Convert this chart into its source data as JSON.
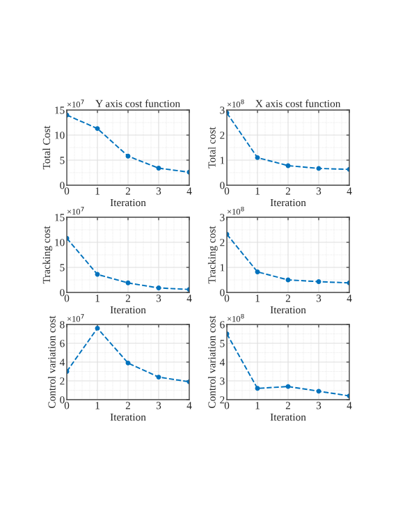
{
  "chart_data": [
    {
      "type": "line",
      "title": "Y axis cost function",
      "xlabel": "Iteration",
      "ylabel": "Total Cost",
      "annotations": [
        "×10$^{7}$"
      ],
      "x": [
        0,
        1,
        2,
        3,
        4
      ],
      "series": [
        {
          "color": "#0072bd",
          "values": [
            14,
            11.3,
            5.8,
            3.4,
            2.6
          ]
        }
      ],
      "xlim": [
        0,
        4
      ],
      "xticks": [
        0,
        1,
        2,
        3,
        4
      ],
      "ylim": [
        0,
        15
      ],
      "yticks": [
        0,
        5,
        10,
        15
      ],
      "grid": true,
      "marker": "circle",
      "line_style": "dashed"
    },
    {
      "type": "line",
      "title": "X axis cost function",
      "xlabel": "Iteration",
      "ylabel": "Total cost",
      "annotations": [
        "×10$^{8}$"
      ],
      "x": [
        0,
        1,
        2,
        3,
        4
      ],
      "series": [
        {
          "color": "#0072bd",
          "values": [
            2.88,
            1.1,
            0.78,
            0.67,
            0.63
          ]
        }
      ],
      "xlim": [
        0,
        4
      ],
      "xticks": [
        0,
        1,
        2,
        3,
        4
      ],
      "ylim": [
        0,
        3
      ],
      "yticks": [
        0,
        1,
        2,
        3
      ],
      "grid": true,
      "marker": "circle",
      "line_style": "dashed"
    },
    {
      "type": "line",
      "xlabel": "Iteration",
      "ylabel": "Tracking cost",
      "annotations": [
        "×10$^{7}$"
      ],
      "x": [
        0,
        1,
        2,
        3,
        4
      ],
      "series": [
        {
          "color": "#0072bd",
          "values": [
            10.8,
            3.6,
            1.9,
            0.9,
            0.6
          ]
        }
      ],
      "xlim": [
        0,
        4
      ],
      "xticks": [
        0,
        1,
        2,
        3,
        4
      ],
      "ylim": [
        0,
        15
      ],
      "yticks": [
        0,
        5,
        10,
        15
      ],
      "grid": true,
      "marker": "circle",
      "line_style": "dashed"
    },
    {
      "type": "line",
      "xlabel": "Iteration",
      "ylabel": "Tracking cost",
      "annotations": [
        "×10$^{8}$"
      ],
      "x": [
        0,
        1,
        2,
        3,
        4
      ],
      "series": [
        {
          "color": "#0072bd",
          "values": [
            2.32,
            0.82,
            0.5,
            0.43,
            0.38
          ]
        }
      ],
      "xlim": [
        0,
        4
      ],
      "xticks": [
        0,
        1,
        2,
        3,
        4
      ],
      "ylim": [
        0,
        3
      ],
      "yticks": [
        0,
        1,
        2,
        3
      ],
      "grid": true,
      "marker": "circle",
      "line_style": "dashed"
    },
    {
      "type": "line",
      "xlabel": "Iteration",
      "ylabel": "Control variation cost",
      "annotations": [
        "×10$^{7}$"
      ],
      "x": [
        0,
        1,
        2,
        3,
        4
      ],
      "series": [
        {
          "color": "#0072bd",
          "values": [
            3.0,
            7.6,
            3.9,
            2.4,
            1.9
          ]
        }
      ],
      "xlim": [
        0,
        4
      ],
      "xticks": [
        0,
        1,
        2,
        3,
        4
      ],
      "ylim": [
        0,
        8
      ],
      "yticks": [
        0,
        2,
        4,
        6,
        8
      ],
      "grid": true,
      "marker": "circle",
      "line_style": "dashed"
    },
    {
      "type": "line",
      "xlabel": "Iteration",
      "ylabel": "Control variation cost",
      "annotations": [
        "×10$^{8}$"
      ],
      "x": [
        0,
        1,
        2,
        3,
        4
      ],
      "series": [
        {
          "color": "#0072bd",
          "values": [
            5.5,
            2.6,
            2.7,
            2.45,
            2.2
          ]
        }
      ],
      "xlim": [
        0,
        4
      ],
      "xticks": [
        0,
        1,
        2,
        3,
        4
      ],
      "ylim": [
        2,
        6
      ],
      "yticks": [
        2,
        3,
        4,
        5,
        6
      ],
      "grid": true,
      "marker": "circle",
      "line_style": "dashed"
    }
  ]
}
